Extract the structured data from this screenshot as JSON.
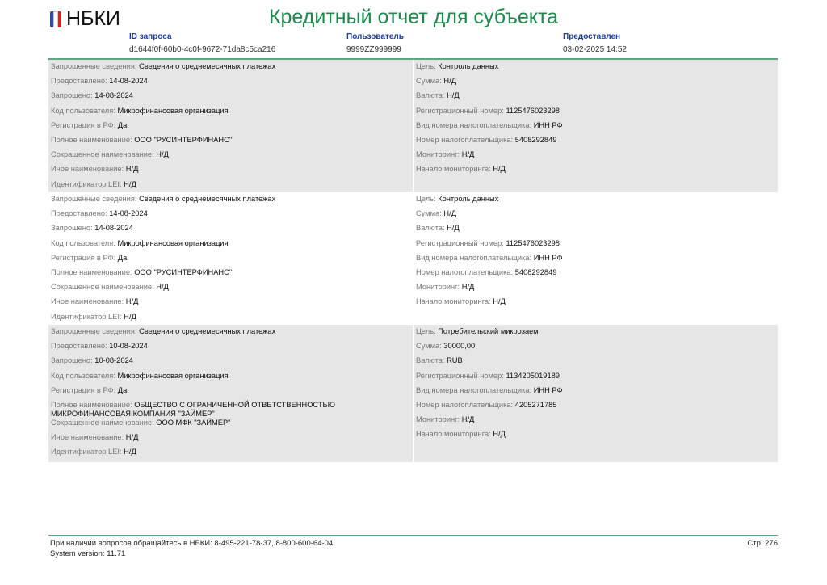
{
  "header": {
    "logo": "НБКИ",
    "title": "Кредитный отчет для субъекта",
    "request_id_label": "ID запроса",
    "request_id": "d1644f0f-60b0-4c0f-9672-71da8c5ca216",
    "user_label": "Пользователь",
    "user": "9999ZZ999999",
    "provided_label": "Предоставлен",
    "provided": "03-02-2025 14:52"
  },
  "blocks": [
    {
      "shaded": true,
      "left": [
        [
          "Запрошенные сведения:",
          "Сведения о среднемесячных платежах"
        ],
        [
          "Предоставлено:",
          "14-08-2024"
        ],
        [
          "Запрошено:",
          "14-08-2024"
        ],
        [
          "Код пользователя:",
          "Микрофинансовая организация"
        ],
        [
          "Регистрация в РФ:",
          "Да"
        ],
        [
          "Полное наименование:",
          "ООО \"РУСИНТЕРФИНАНС\""
        ],
        [
          "Сокращенное наименование:",
          "Н/Д"
        ],
        [
          "Иное наименование:",
          "Н/Д"
        ],
        [
          "Идентификатор LEI:",
          "Н/Д"
        ]
      ],
      "right": [
        [
          "Цель:",
          "Контроль данных"
        ],
        [
          "Сумма:",
          "Н/Д"
        ],
        [
          "Валюта:",
          "Н/Д"
        ],
        [
          "Регистрационный номер:",
          "1125476023298"
        ],
        [
          "Вид номера налогоплательщика:",
          "ИНН РФ"
        ],
        [
          "Номер налогоплательщика:",
          "5408292849"
        ],
        [
          "Мониторинг:",
          "Н/Д"
        ],
        [
          "Начало мониторинга:",
          "Н/Д"
        ]
      ]
    },
    {
      "shaded": false,
      "left": [
        [
          "Запрошенные сведения:",
          "Сведения о среднемесячных платежах"
        ],
        [
          "Предоставлено:",
          "14-08-2024"
        ],
        [
          "Запрошено:",
          "14-08-2024"
        ],
        [
          "Код пользователя:",
          "Микрофинансовая организация"
        ],
        [
          "Регистрация в РФ:",
          "Да"
        ],
        [
          "Полное наименование:",
          "ООО \"РУСИНТЕРФИНАНС\""
        ],
        [
          "Сокращенное наименование:",
          "Н/Д"
        ],
        [
          "Иное наименование:",
          "Н/Д"
        ],
        [
          "Идентификатор LEI:",
          "Н/Д"
        ]
      ],
      "right": [
        [
          "Цель:",
          "Контроль данных"
        ],
        [
          "Сумма:",
          "Н/Д"
        ],
        [
          "Валюта:",
          "Н/Д"
        ],
        [
          "Регистрационный номер:",
          "1125476023298"
        ],
        [
          "Вид номера налогоплательщика:",
          "ИНН РФ"
        ],
        [
          "Номер налогоплательщика:",
          "5408292849"
        ],
        [
          "Мониторинг:",
          "Н/Д"
        ],
        [
          "Начало мониторинга:",
          "Н/Д"
        ]
      ]
    },
    {
      "shaded": true,
      "left": [
        [
          "Запрошенные сведения:",
          "Сведения о среднемесячных платежах"
        ],
        [
          "Предоставлено:",
          "10-08-2024"
        ],
        [
          "Запрошено:",
          "10-08-2024"
        ],
        [
          "Код пользователя:",
          "Микрофинансовая организация"
        ],
        [
          "Регистрация в РФ:",
          "Да"
        ],
        [
          "Полное наименование:",
          "ОБЩЕСТВО С ОГРАНИЧЕННОЙ ОТВЕТСТВЕННОСТЬЮ МИКРОФИНАНСОВАЯ КОМПАНИЯ \"ЗАЙМЕР\""
        ],
        [
          "Сокращенное наименование:",
          "ООО МФК \"ЗАЙМЕР\""
        ],
        [
          "Иное наименование:",
          "Н/Д"
        ],
        [
          "Идентификатор LEI:",
          "Н/Д"
        ]
      ],
      "right": [
        [
          "Цель:",
          "Потребительский микрозаем"
        ],
        [
          "Сумма:",
          "30000,00"
        ],
        [
          "Валюта:",
          "RUB"
        ],
        [
          "Регистрационный номер:",
          "1134205019189"
        ],
        [
          "Вид номера налогоплательщика:",
          "ИНН РФ"
        ],
        [
          "Номер налогоплательщика:",
          "4205271785"
        ],
        [
          "Мониторинг:",
          "Н/Д"
        ],
        [
          "Начало мониторинга:",
          "Н/Д"
        ]
      ]
    }
  ],
  "footer": {
    "contact": "При наличии вопросов обращайтесь в НБКИ: 8-495-221-78-37, 8-800-600-64-04",
    "version": "System version: 11.71",
    "page": "Стр. 276"
  },
  "colors": {
    "title": "#1b8a4c",
    "label": "#1d3b9b",
    "shade": "#e6e6e6"
  }
}
